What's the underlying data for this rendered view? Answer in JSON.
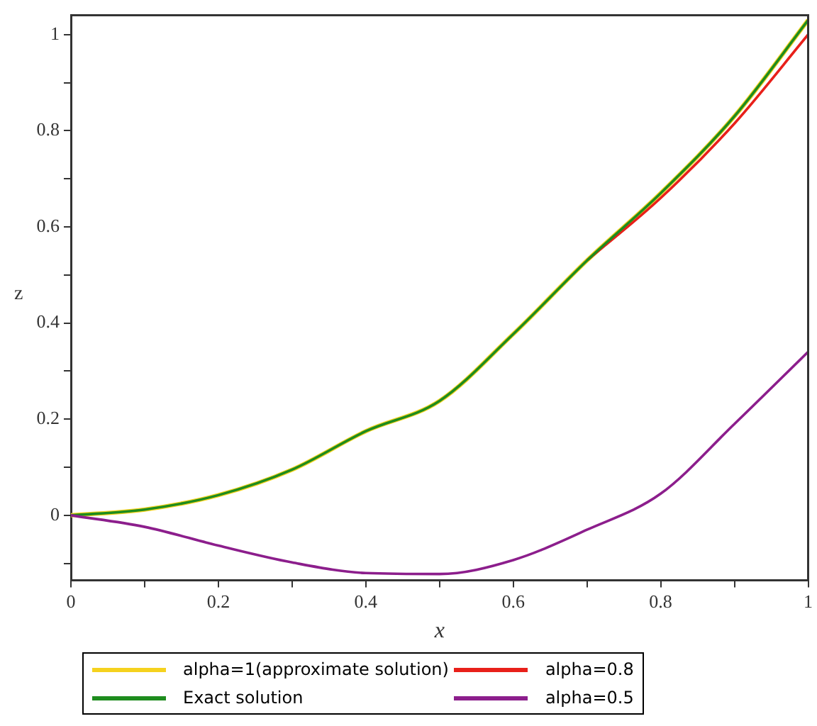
{
  "chart_data": {
    "type": "line",
    "xlabel": "x",
    "ylabel": "z",
    "x": [
      0,
      0.1,
      0.2,
      0.3,
      0.4,
      0.5,
      0.6,
      0.7,
      0.8,
      0.9,
      1
    ],
    "series": [
      {
        "name": "alpha=1(approximate solution)",
        "color": "#f5d21e",
        "values": [
          0,
          0.012,
          0.042,
          0.095,
          0.175,
          0.238,
          0.377,
          0.53,
          0.67,
          0.83,
          1.03
        ]
      },
      {
        "name": "alpha=0.8",
        "color": "#e8201a",
        "values": [
          null,
          null,
          null,
          null,
          null,
          null,
          null,
          0.53,
          0.66,
          0.815,
          1.0
        ]
      },
      {
        "name": "Exact solution",
        "color": "#1e8c1e",
        "values": [
          0,
          0.012,
          0.042,
          0.095,
          0.175,
          0.238,
          0.377,
          0.53,
          0.67,
          0.83,
          1.03
        ]
      },
      {
        "name": "alpha=0.5",
        "color": "#8c1e8c",
        "values": [
          0,
          -0.024,
          -0.063,
          -0.098,
          -0.12,
          -0.122,
          -0.093,
          -0.03,
          0.045,
          0.19,
          0.34
        ]
      }
    ],
    "xlim": [
      0,
      1
    ],
    "ylim": [
      -0.135,
      1.04
    ],
    "xticks": [
      0,
      {
        "value": 0.1,
        "label": null
      },
      0.2,
      {
        "value": 0.3,
        "label": null
      },
      0.4,
      {
        "value": 0.5,
        "label": null
      },
      0.6,
      {
        "value": 0.7,
        "label": null
      },
      0.8,
      {
        "value": 0.9,
        "label": null
      },
      1
    ],
    "yticks": [
      {
        "value": -0.1,
        "label": null
      },
      0,
      {
        "value": 0.1,
        "label": null
      },
      0.2,
      {
        "value": 0.3,
        "label": null
      },
      0.4,
      {
        "value": 0.5,
        "label": null
      },
      0.6,
      {
        "value": 0.7,
        "label": null
      },
      0.8,
      {
        "value": 0.9,
        "label": null
      },
      1
    ],
    "grid": false,
    "legend": "bottom",
    "marker": "none",
    "line_style": "solid"
  }
}
